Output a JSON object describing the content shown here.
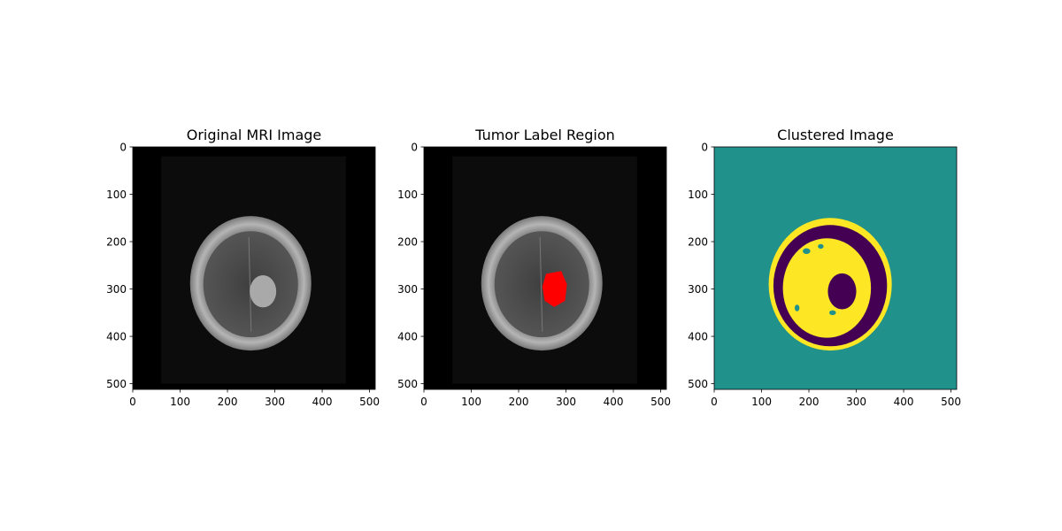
{
  "chart_data": [
    {
      "type": "image",
      "title": "Original MRI Image",
      "xlim": [
        0,
        512
      ],
      "ylim": [
        0,
        512
      ],
      "y_inverted": true,
      "xticks": [
        0,
        100,
        200,
        300,
        400,
        500
      ],
      "yticks": [
        0,
        100,
        200,
        300,
        400,
        500
      ]
    },
    {
      "type": "image",
      "title": "Tumor Label Region",
      "xlim": [
        0,
        512
      ],
      "ylim": [
        0,
        512
      ],
      "y_inverted": true,
      "xticks": [
        0,
        100,
        200,
        300,
        400,
        500
      ],
      "yticks": [
        0,
        100,
        200,
        300,
        400,
        500
      ]
    },
    {
      "type": "image",
      "title": "Clustered Image",
      "xlim": [
        0,
        512
      ],
      "ylim": [
        0,
        512
      ],
      "y_inverted": true,
      "xticks": [
        0,
        100,
        200,
        300,
        400,
        500
      ],
      "yticks": [
        0,
        100,
        200,
        300,
        400,
        500
      ]
    }
  ]
}
